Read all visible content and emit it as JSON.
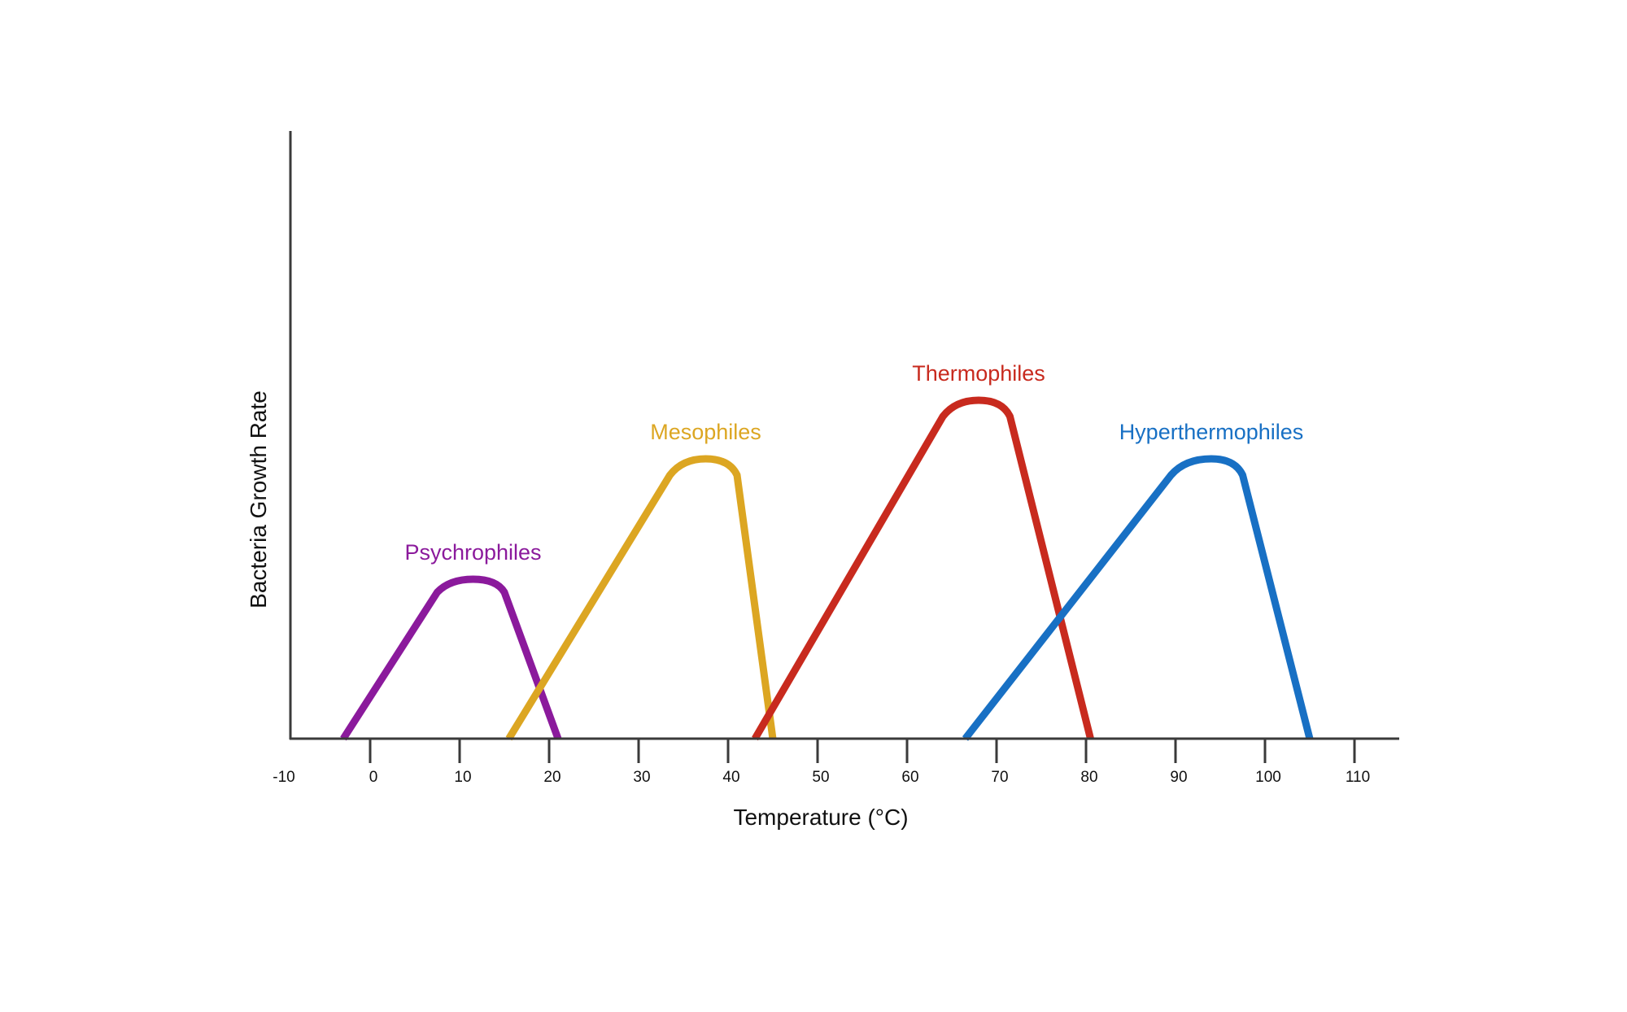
{
  "chart_data": {
    "type": "line",
    "title": "",
    "xlabel": "Temperature (°C)",
    "ylabel": "Bacteria Growth Rate",
    "xlim": [
      -10,
      110
    ],
    "ylim": [
      0,
      100
    ],
    "x_ticks": [
      -10,
      0,
      10,
      20,
      30,
      40,
      50,
      60,
      70,
      80,
      90,
      100,
      110
    ],
    "x_tick_labels": [
      "-10",
      "0",
      "10",
      "20",
      "30",
      "40",
      "50",
      "60",
      "70",
      "80",
      "90",
      "100",
      "110"
    ],
    "grid": false,
    "legend": "none (curves labeled directly above peaks)",
    "series": [
      {
        "name": "Psychrophiles",
        "color": "#8b1a9c",
        "points": [
          [
            -3,
            0
          ],
          [
            7.5,
            45
          ],
          [
            11.5,
            49
          ],
          [
            15,
            45
          ],
          [
            21,
            0
          ]
        ]
      },
      {
        "name": "Mesophiles",
        "color": "#dca622",
        "points": [
          [
            15.5,
            0
          ],
          [
            33.5,
            81
          ],
          [
            37.5,
            86
          ],
          [
            41,
            81
          ],
          [
            45,
            0
          ]
        ]
      },
      {
        "name": "Thermophiles",
        "color": "#c82a1e",
        "points": [
          [
            43,
            0
          ],
          [
            64,
            99
          ],
          [
            68,
            104
          ],
          [
            71.5,
            99
          ],
          [
            80.5,
            0
          ]
        ]
      },
      {
        "name": "Hyperthermophiles",
        "color": "#1870c4",
        "points": [
          [
            66.5,
            0
          ],
          [
            89.5,
            81
          ],
          [
            94,
            86
          ],
          [
            97.5,
            81
          ],
          [
            105,
            0
          ]
        ]
      }
    ]
  }
}
